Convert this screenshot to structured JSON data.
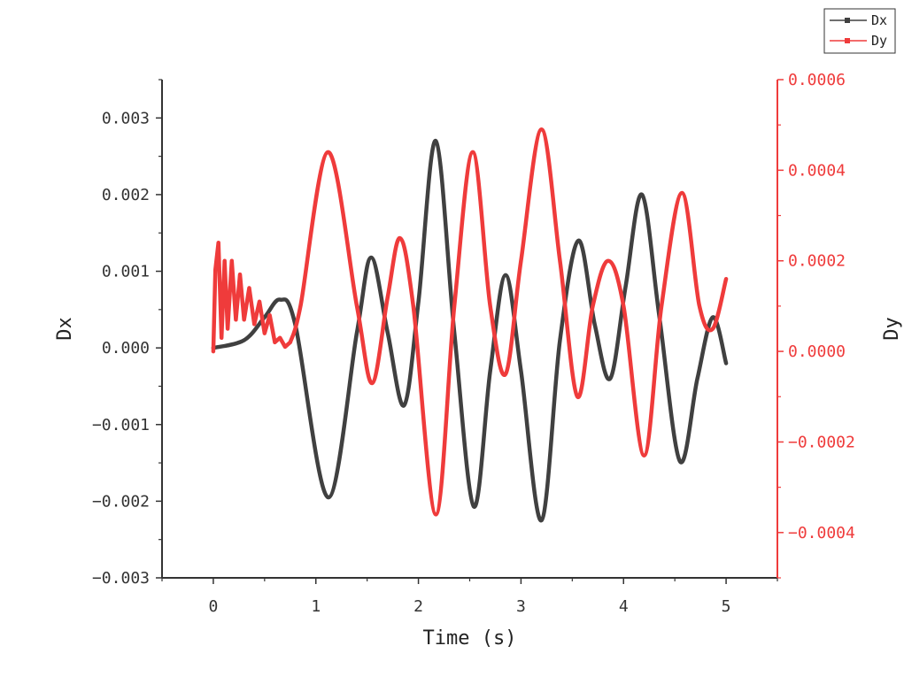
{
  "chart_data": {
    "type": "line",
    "title": "",
    "xlabel": "Time (s)",
    "ylabel_left": "Dx",
    "ylabel_right": "Dy",
    "xlim": [
      -0.5,
      5.5
    ],
    "ylim_left": [
      -0.003,
      0.0035
    ],
    "ylim_right": [
      -0.0005,
      0.0006
    ],
    "x_ticks": [
      0,
      1,
      2,
      3,
      4,
      5
    ],
    "x_tick_labels": [
      "0",
      "1",
      "2",
      "3",
      "4",
      "5"
    ],
    "y_left_ticks": [
      -0.003,
      -0.002,
      -0.001,
      0.0,
      0.001,
      0.002,
      0.003
    ],
    "y_left_tick_labels": [
      "−0.003",
      "−0.002",
      "−0.001",
      "0.000",
      "0.001",
      "0.002",
      "0.003"
    ],
    "y_right_ticks": [
      -0.0004,
      -0.0002,
      0.0,
      0.0002,
      0.0004,
      0.0006
    ],
    "y_right_tick_labels": [
      "−0.0004",
      "−0.0002",
      "0.0000",
      "0.0002",
      "0.0004",
      "0.0006"
    ],
    "grid": false,
    "legend_position": "top-right, outside plot",
    "series": [
      {
        "name": "Dx",
        "axis": "left",
        "color": "#404040",
        "x": [
          0,
          0.3,
          0.5,
          0.65,
          0.8,
          1.12,
          1.4,
          1.54,
          1.7,
          1.86,
          2.0,
          2.17,
          2.35,
          2.54,
          2.7,
          2.85,
          3.0,
          3.2,
          3.38,
          3.56,
          3.72,
          3.87,
          4.02,
          4.18,
          4.35,
          4.55,
          4.72,
          4.87,
          5.0
        ],
        "y": [
          0.0,
          0.0001,
          0.0004,
          0.00063,
          0.0003,
          -0.00195,
          0.0002,
          0.00118,
          0.0002,
          -0.00075,
          0.0006,
          0.0027,
          0.0002,
          -0.00207,
          -0.0003,
          0.00095,
          -0.0003,
          -0.00225,
          0.0001,
          0.0014,
          0.0003,
          -0.0004,
          0.0008,
          0.002,
          0.0004,
          -0.00148,
          -0.0004,
          0.0004,
          -0.0002
        ]
      },
      {
        "name": "Dy",
        "axis": "right",
        "color": "#ef3b3b",
        "x": [
          0,
          0.02,
          0.05,
          0.08,
          0.11,
          0.14,
          0.18,
          0.22,
          0.26,
          0.3,
          0.35,
          0.4,
          0.45,
          0.5,
          0.55,
          0.6,
          0.65,
          0.7,
          0.75,
          0.85,
          1.12,
          1.4,
          1.55,
          1.7,
          1.82,
          1.95,
          2.17,
          2.35,
          2.53,
          2.7,
          2.85,
          3.0,
          3.2,
          3.38,
          3.55,
          3.7,
          3.85,
          4.0,
          4.2,
          4.37,
          4.57,
          4.74,
          4.87,
          5.0
        ],
        "y": [
          0.0,
          0.00018,
          0.00024,
          3e-05,
          0.0002,
          5e-05,
          0.0002,
          7e-05,
          0.00017,
          7e-05,
          0.00014,
          6e-05,
          0.00011,
          4e-05,
          8e-05,
          2e-05,
          3e-05,
          1e-05,
          2e-05,
          0.0001,
          0.00044,
          0.0001,
          -7e-05,
          0.00012,
          0.00025,
          0.0001,
          -0.00036,
          0.0001,
          0.00044,
          0.0001,
          -5e-05,
          0.0002,
          0.00049,
          0.0002,
          -0.0001,
          0.0001,
          0.0002,
          0.0001,
          -0.00023,
          0.0001,
          0.00035,
          0.0001,
          5e-05,
          0.00016
        ]
      }
    ]
  }
}
